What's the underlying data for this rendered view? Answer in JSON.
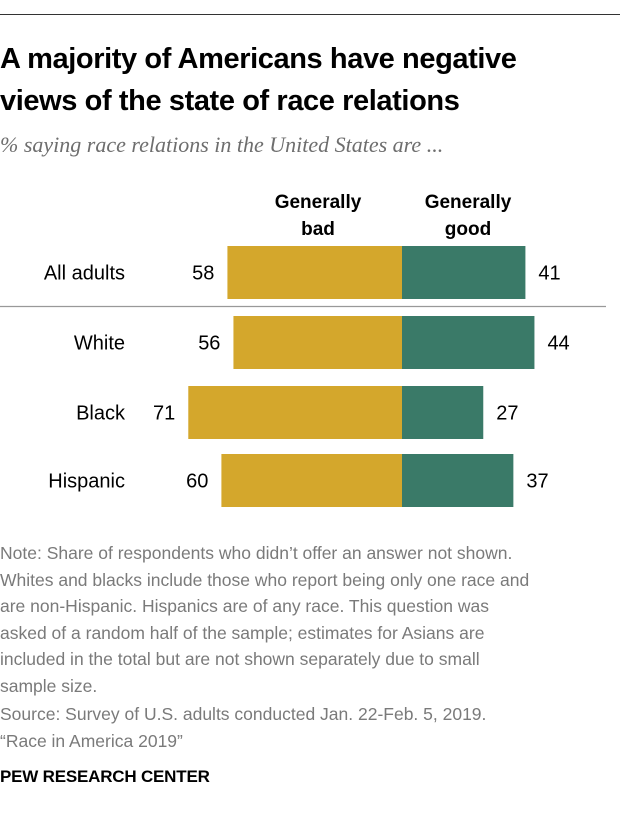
{
  "title": "A majority of Americans have negative views of the state of race relations",
  "title_lines": [
    "A majority of Americans have negative",
    "views of the state of race relations"
  ],
  "subtitle": "% saying race relations in the United States are ...",
  "chart_data": {
    "type": "bar",
    "orientation": "horizontal-diverging",
    "categories": [
      "All adults",
      "White",
      "Black",
      "Hispanic"
    ],
    "series": [
      {
        "name": "Generally bad",
        "name_lines": [
          "Generally",
          "bad"
        ],
        "color": "#d4a72c",
        "values": [
          58,
          56,
          71,
          60
        ]
      },
      {
        "name": "Generally good",
        "name_lines": [
          "Generally",
          "good"
        ],
        "color": "#3a7a68",
        "values": [
          41,
          44,
          27,
          37
        ]
      }
    ],
    "divider_after_category": "All adults",
    "legend_placement": "top",
    "grid": false
  },
  "note_lines": [
    "Note: Share of respondents who didn’t offer an answer not shown.",
    "Whites and blacks include those who report being only one race and",
    "are non-Hispanic. Hispanics are of any race. This question was",
    "asked of a random half of the sample; estimates for Asians are",
    "included in the total but are not shown separately due to small",
    "sample size."
  ],
  "source_lines": [
    "Source: Survey of U.S. adults conducted Jan. 22-Feb. 5, 2019.",
    "“Race in America 2019”"
  ],
  "brand": "PEW RESEARCH CENTER"
}
